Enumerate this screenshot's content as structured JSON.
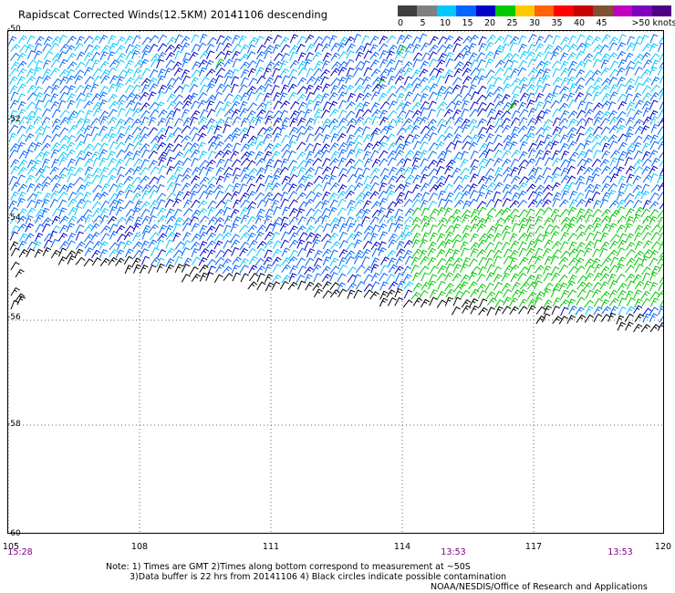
{
  "title": "Rapidscat Corrected Winds(12.5KM) 20141106 descending",
  "legend": {
    "labels": [
      "0",
      "5",
      "10",
      "15",
      "20",
      "25",
      "30",
      "35",
      "40",
      "45",
      ">50 knots"
    ],
    "colors": [
      "#404040",
      "#808080",
      "#00c8ff",
      "#0064ff",
      "#0000c8",
      "#00c800",
      "#ffc800",
      "#ff6400",
      "#ff0000",
      "#c80000",
      "#805030",
      "#c000c0",
      "#8000c0",
      "#500080"
    ]
  },
  "map": {
    "lat_labels": [
      "-50",
      "-52",
      "-54",
      "-56",
      "-58",
      "-60"
    ],
    "lon_labels": [
      "105",
      "108",
      "111",
      "114",
      "117",
      "120"
    ],
    "times": [
      "15:28",
      "13:53",
      "13:53"
    ]
  },
  "notes": {
    "line1": "Note: 1) Times are GMT 2)Times along bottom correspond to measurement at ~50S",
    "line2": "3)Data buffer is 22 hrs from 20141106 4) Black circles indicate possible contamination",
    "credit": "NOAA/NESDIS/Office of Research and Applications"
  }
}
